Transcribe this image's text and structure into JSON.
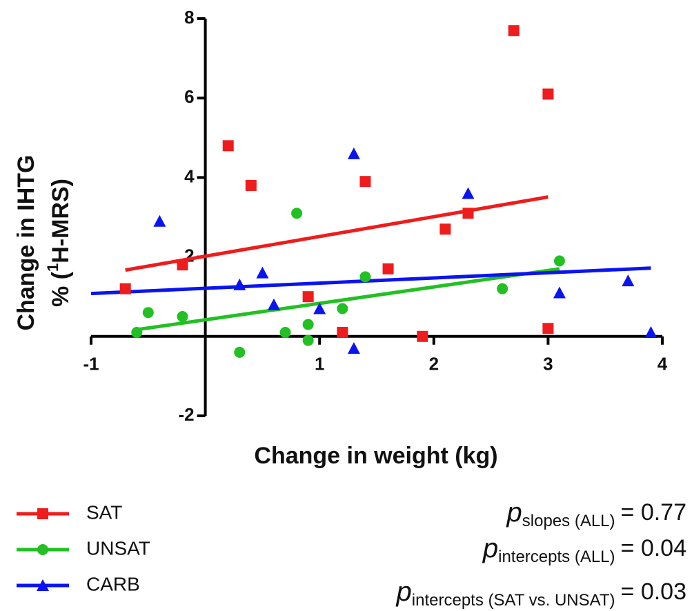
{
  "chart_data": {
    "type": "scatter",
    "xlabel": "Change in weight (kg)",
    "ylabel": {
      "line1": "Change in IHTG",
      "line2_pre": "% (",
      "line2_sup": "1",
      "line2_post": "H-MRS)"
    },
    "xlim": [
      -1,
      4
    ],
    "ylim": [
      -2,
      8
    ],
    "xticks": [
      -1,
      1,
      2,
      3,
      4
    ],
    "yticks": [
      -2,
      2,
      4,
      6,
      8
    ],
    "series": [
      {
        "name": "SAT",
        "color": "#ee1c1c",
        "marker": "square",
        "x": [
          -0.7,
          -0.2,
          0.2,
          0.4,
          0.9,
          1.2,
          1.4,
          1.6,
          1.9,
          2.1,
          2.3,
          2.7,
          3.0,
          3.0
        ],
        "values": [
          1.2,
          1.8,
          4.8,
          3.8,
          1.0,
          0.1,
          3.9,
          1.7,
          0.0,
          2.7,
          3.1,
          7.7,
          6.1,
          0.2
        ],
        "fit": {
          "x": [
            -0.7,
            3.0
          ],
          "y": [
            1.67,
            3.51
          ]
        }
      },
      {
        "name": "UNSAT",
        "color": "#22c022",
        "marker": "circle",
        "x": [
          -0.6,
          -0.5,
          -0.2,
          0.3,
          0.7,
          0.8,
          0.9,
          0.9,
          1.2,
          1.4,
          2.6,
          3.1
        ],
        "values": [
          0.1,
          0.6,
          0.5,
          -0.4,
          0.1,
          3.1,
          0.3,
          -0.1,
          0.7,
          1.5,
          1.2,
          1.9
        ],
        "fit": {
          "x": [
            -0.6,
            3.1
          ],
          "y": [
            0.17,
            1.7
          ]
        }
      },
      {
        "name": "CARB",
        "color": "#0a14f0",
        "marker": "triangle",
        "x": [
          -0.4,
          0.3,
          0.5,
          0.6,
          1.0,
          1.3,
          1.3,
          2.3,
          3.1,
          3.7,
          3.9
        ],
        "values": [
          2.9,
          1.3,
          1.6,
          0.8,
          0.7,
          4.6,
          -0.3,
          3.6,
          1.1,
          1.4,
          0.1
        ],
        "fit": {
          "x": [
            -1.0,
            3.9
          ],
          "y": [
            1.08,
            1.72
          ]
        }
      }
    ],
    "annotations": [
      {
        "symbol": "p",
        "subscript": "slopes (ALL)",
        "text": "= 0.77"
      },
      {
        "symbol": "p",
        "subscript": "intercepts (ALL)",
        "text": "= 0.04"
      },
      {
        "symbol": "p",
        "subscript": "intercepts (SAT vs. UNSAT)",
        "text": "= 0.03"
      }
    ]
  }
}
